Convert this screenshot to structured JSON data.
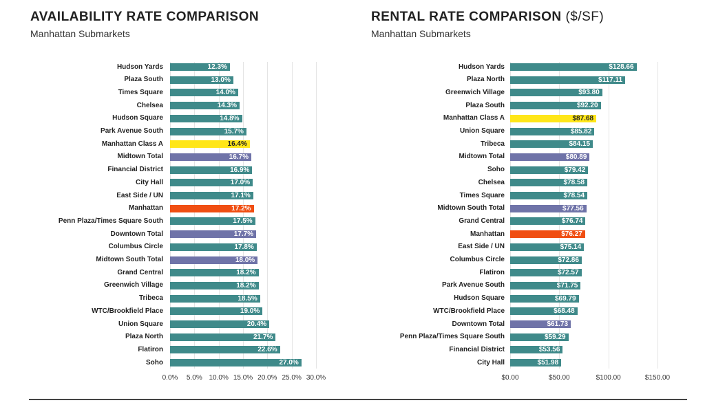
{
  "colors": {
    "default": "#3f8a8a",
    "class_a": "#ffe619",
    "total": "#6f73a8",
    "manhattan": "#f04e12"
  },
  "chart_data": [
    {
      "type": "bar",
      "orientation": "horizontal",
      "title": "AVAILABILITY RATE COMPARISON",
      "subtitle": "Manhattan Submarkets",
      "xlim": [
        0,
        30
      ],
      "ticks": [
        "0.0%",
        "5.0%",
        "10.0%",
        "15.0%",
        "20.0%",
        "25.0%",
        "30.0%"
      ],
      "tick_values": [
        0,
        5,
        10,
        15,
        20,
        25,
        30
      ],
      "categories": [
        "Hudson Yards",
        "Plaza South",
        "Times Square",
        "Chelsea",
        "Hudson Square",
        "Park Avenue South",
        "Manhattan Class A",
        "Midtown Total",
        "Financial District",
        "City Hall",
        "East Side / UN",
        "Manhattan",
        "Penn Plaza/Times Square South",
        "Downtown Total",
        "Columbus Circle",
        "Midtown South Total",
        "Grand Central",
        "Greenwich Village",
        "Tribeca",
        "WTC/Brookfield Place",
        "Union Square",
        "Plaza North",
        "Flatiron",
        "Soho"
      ],
      "values": [
        12.3,
        13.0,
        14.0,
        14.3,
        14.8,
        15.7,
        16.4,
        16.7,
        16.9,
        17.0,
        17.1,
        17.2,
        17.5,
        17.7,
        17.8,
        18.0,
        18.2,
        18.2,
        18.5,
        19.0,
        20.4,
        21.7,
        22.6,
        27.0
      ],
      "labels": [
        "12.3%",
        "13.0%",
        "14.0%",
        "14.3%",
        "14.8%",
        "15.7%",
        "16.4%",
        "16.7%",
        "16.9%",
        "17.0%",
        "17.1%",
        "17.2%",
        "17.5%",
        "17.7%",
        "17.8%",
        "18.0%",
        "18.2%",
        "18.2%",
        "18.5%",
        "19.0%",
        "20.4%",
        "21.7%",
        "22.6%",
        "27.0%"
      ]
    },
    {
      "type": "bar",
      "orientation": "horizontal",
      "title": "RENTAL RATE COMPARISON",
      "title_suffix": "($/SF)",
      "subtitle": "Manhattan Submarkets",
      "xlim": [
        0,
        150
      ],
      "ticks": [
        "$0.00",
        "$50.00",
        "$100.00",
        "$150.00"
      ],
      "tick_values": [
        0,
        50,
        100,
        150
      ],
      "categories": [
        "Hudson Yards",
        "Plaza North",
        "Greenwich Village",
        "Plaza South",
        "Manhattan Class A",
        "Union Square",
        "Tribeca",
        "Midtown Total",
        "Soho",
        "Chelsea",
        "Times Square",
        "Midtown South Total",
        "Grand Central",
        "Manhattan",
        "East Side / UN",
        "Columbus Circle",
        "Flatiron",
        "Park Avenue South",
        "Hudson Square",
        "WTC/Brookfield Place",
        "Downtown Total",
        "Penn Plaza/Times Square South",
        "Financial District",
        "City Hall"
      ],
      "values": [
        128.66,
        117.11,
        93.8,
        92.2,
        87.68,
        85.82,
        84.15,
        80.89,
        79.42,
        78.58,
        78.54,
        77.56,
        76.74,
        76.27,
        75.14,
        72.86,
        72.57,
        71.75,
        69.79,
        68.48,
        61.73,
        59.29,
        53.56,
        51.98
      ],
      "labels": [
        "$128.66",
        "$117.11",
        "$93.80",
        "$92.20",
        "$87.68",
        "$85.82",
        "$84.15",
        "$80.89",
        "$79.42",
        "$78.58",
        "$78.54",
        "$77.56",
        "$76.74",
        "$76.27",
        "$75.14",
        "$72.86",
        "$72.57",
        "$71.75",
        "$69.79",
        "$68.48",
        "$61.73",
        "$59.29",
        "$53.56",
        "$51.98"
      ]
    }
  ]
}
